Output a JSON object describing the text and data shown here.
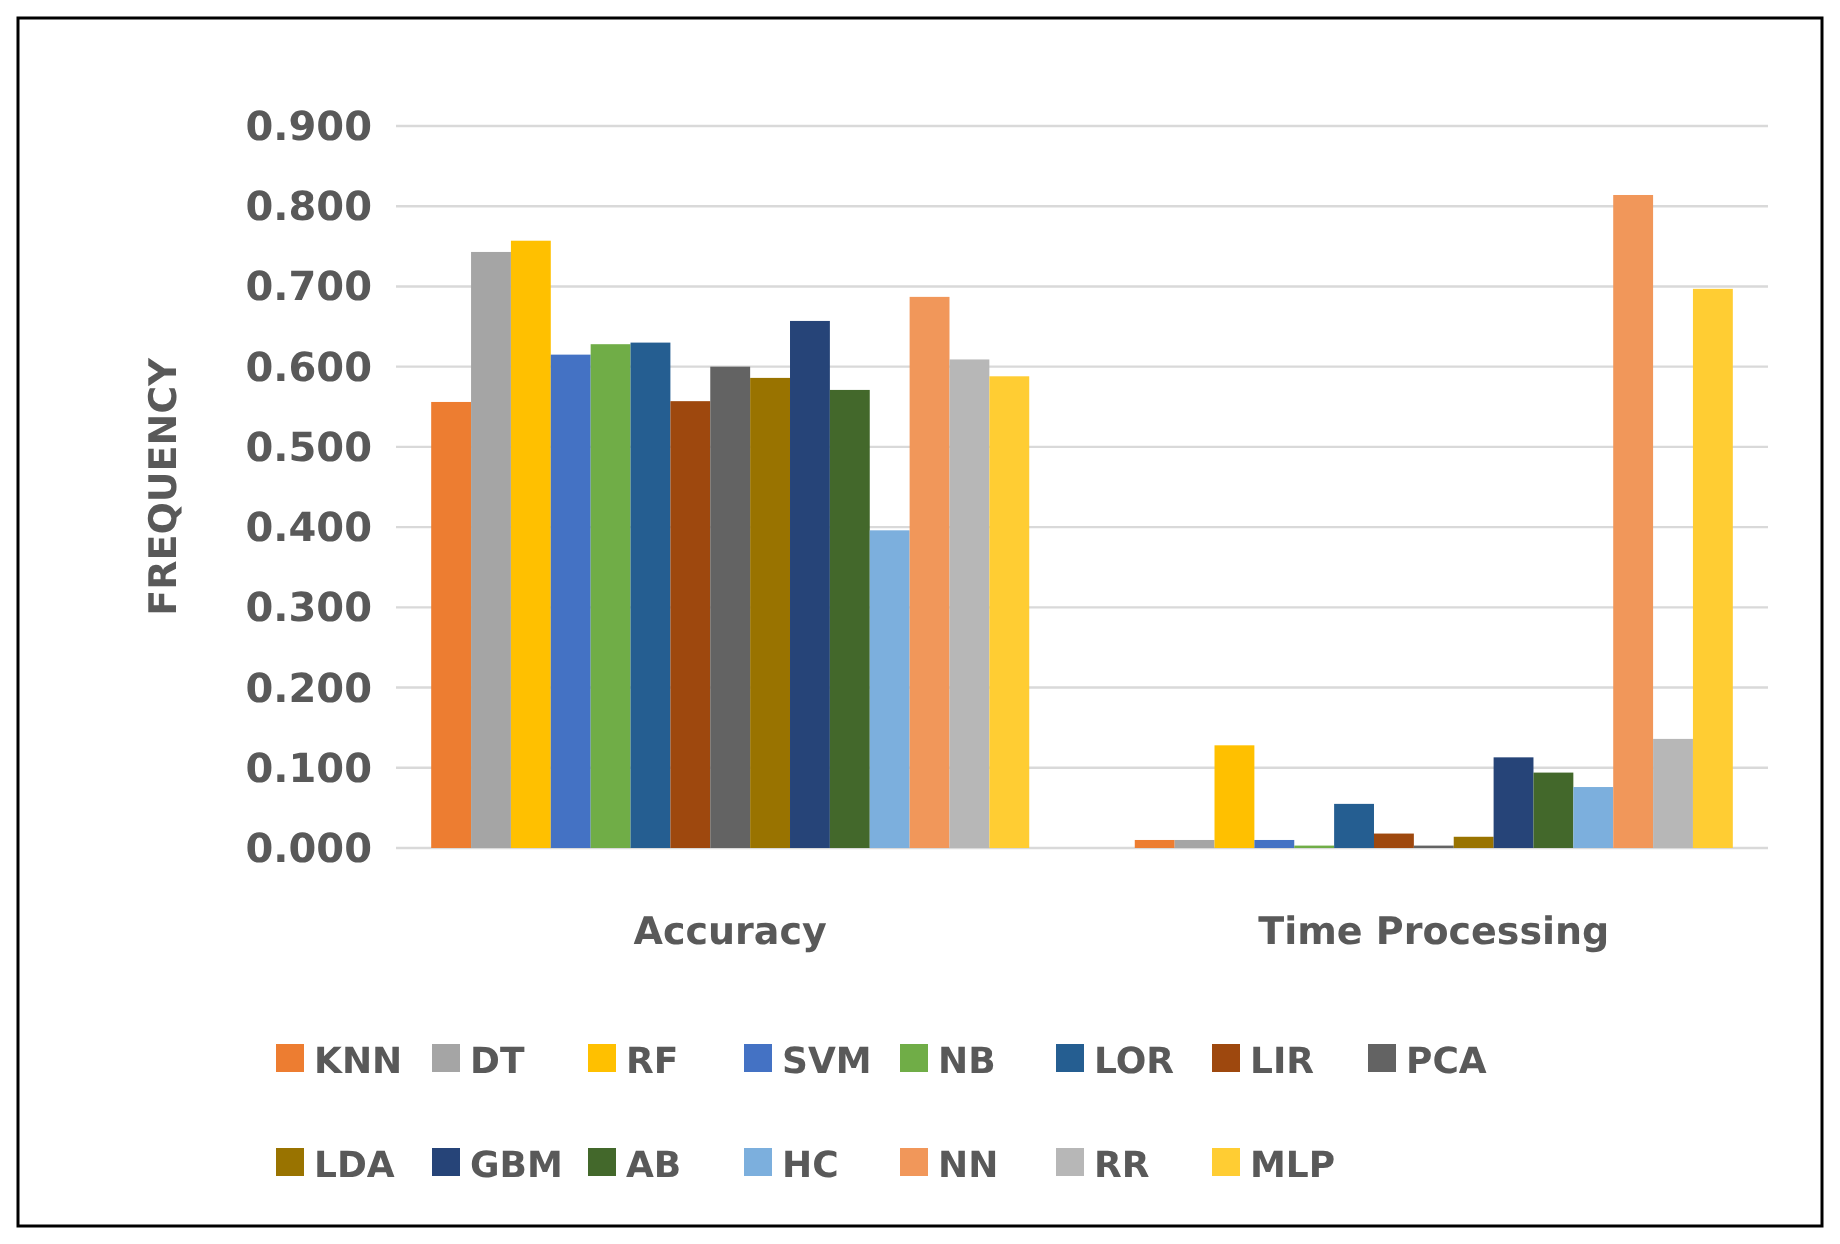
{
  "chart_data": {
    "type": "bar",
    "ylabel": "FREQUENCY",
    "categories": [
      "Accuracy",
      "Time Processing"
    ],
    "ylim": [
      0,
      0.9
    ],
    "yticks": [
      {
        "value": 0,
        "label": "0.000"
      },
      {
        "value": 0.1,
        "label": "0.100"
      },
      {
        "value": 0.2,
        "label": "0.200"
      },
      {
        "value": 0.3,
        "label": "0.300"
      },
      {
        "value": 0.4,
        "label": "0.400"
      },
      {
        "value": 0.5,
        "label": "0.500"
      },
      {
        "value": 0.6,
        "label": "0.600"
      },
      {
        "value": 0.7,
        "label": "0.700"
      },
      {
        "value": 0.8,
        "label": "0.800"
      },
      {
        "value": 0.9,
        "label": "0.900"
      }
    ],
    "grid": "y",
    "legend": "bottom",
    "series": [
      {
        "name": "KNN",
        "color": "#ed7d31",
        "values": [
          0.556,
          0.01
        ]
      },
      {
        "name": "DT",
        "color": "#a5a5a5",
        "values": [
          0.743,
          0.01
        ]
      },
      {
        "name": "RF",
        "color": "#ffc000",
        "values": [
          0.757,
          0.128
        ]
      },
      {
        "name": "SVM",
        "color": "#4472c4",
        "values": [
          0.615,
          0.01
        ]
      },
      {
        "name": "NB",
        "color": "#70ad47",
        "values": [
          0.628,
          0.003
        ]
      },
      {
        "name": "LOR",
        "color": "#255e91",
        "values": [
          0.63,
          0.055
        ]
      },
      {
        "name": "LIR",
        "color": "#9e480e",
        "values": [
          0.557,
          0.018
        ]
      },
      {
        "name": "PCA",
        "color": "#636363",
        "values": [
          0.6,
          0.003
        ]
      },
      {
        "name": "LDA",
        "color": "#997300",
        "values": [
          0.586,
          0.014
        ]
      },
      {
        "name": "GBM",
        "color": "#264478",
        "values": [
          0.657,
          0.113
        ]
      },
      {
        "name": "AB",
        "color": "#43682b",
        "values": [
          0.571,
          0.094
        ]
      },
      {
        "name": "HC",
        "color": "#7cafdd",
        "values": [
          0.396,
          0.076
        ]
      },
      {
        "name": "NN",
        "color": "#f1975a",
        "values": [
          0.687,
          0.814
        ]
      },
      {
        "name": "RR",
        "color": "#b7b7b7",
        "values": [
          0.609,
          0.136
        ]
      },
      {
        "name": "MLP",
        "color": "#ffcd33",
        "values": [
          0.588,
          0.697
        ]
      }
    ]
  }
}
